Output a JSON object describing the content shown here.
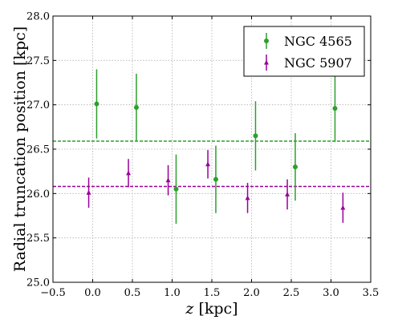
{
  "chart_data": {
    "type": "scatter",
    "xlabel": "z [kpc]",
    "xlabel_var": "z",
    "xlabel_unit": " [kpc]",
    "ylabel": "Radial truncation position [kpc]",
    "xlim": [
      -0.5,
      3.5
    ],
    "ylim": [
      25.0,
      28.0
    ],
    "xticks": [
      -0.5,
      0.0,
      0.5,
      1.0,
      1.5,
      2.0,
      2.5,
      3.0,
      3.5
    ],
    "xtick_labels": [
      "−0.5",
      "0.0",
      "0.5",
      "1.0",
      "1.5",
      "2.0",
      "2.5",
      "3.0",
      "3.5"
    ],
    "yticks": [
      25.0,
      25.5,
      26.0,
      26.5,
      27.0,
      27.5,
      28.0
    ],
    "ytick_labels": [
      "25.0",
      "25.5",
      "26.0",
      "26.5",
      "27.0",
      "27.5",
      "28.0"
    ],
    "grid": true,
    "legend_position": "top-right",
    "series": [
      {
        "name": "NGC 4565",
        "color": "#2ca02c",
        "marker": "circle",
        "x": [
          0.05,
          0.55,
          1.05,
          1.55,
          2.05,
          2.55,
          3.05
        ],
        "y": [
          27.01,
          26.97,
          26.05,
          26.16,
          26.65,
          26.3,
          26.96
        ],
        "err": [
          0.39,
          0.38,
          0.39,
          0.38,
          0.39,
          0.38,
          0.38
        ],
        "mean": 26.59
      },
      {
        "name": "NGC 5907",
        "color": "#9a009a",
        "marker": "triangle",
        "x": [
          -0.05,
          0.45,
          0.95,
          1.45,
          1.95,
          2.45,
          3.15
        ],
        "y": [
          26.01,
          26.23,
          26.15,
          26.33,
          25.95,
          25.99,
          25.84
        ],
        "err": [
          0.17,
          0.16,
          0.17,
          0.16,
          0.17,
          0.17,
          0.17
        ],
        "mean": 26.08
      }
    ]
  }
}
